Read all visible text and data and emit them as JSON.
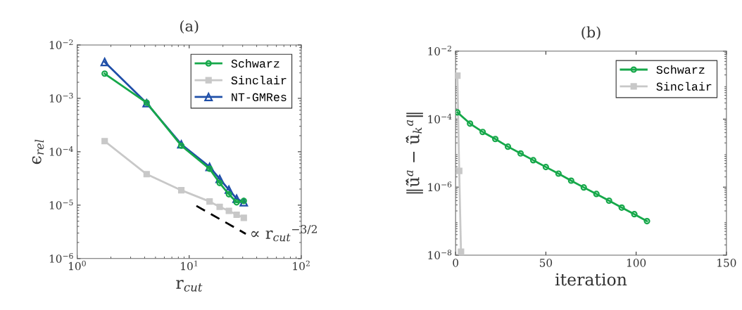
{
  "chart_data": [
    {
      "type": "line",
      "title": "(a)",
      "xlabel": "r$_{cut}$",
      "ylabel": "ϵ$_{rel}$",
      "log": "xy",
      "grid": false,
      "legend": "top right",
      "xlim": [
        1,
        100
      ],
      "ylim": [
        1e-06,
        0.01
      ],
      "xticks": [
        {
          "value": 1,
          "label": "10$^{0}$"
        },
        {
          "value": 10,
          "label": "10$^{1}$"
        },
        {
          "value": 100,
          "label": "10$^{2}$"
        }
      ],
      "yticks": [
        {
          "value": 1e-06,
          "label": "10$^{−6}$"
        },
        {
          "value": 1e-05,
          "label": "10$^{−5}$"
        },
        {
          "value": 0.0001,
          "label": "10$^{−4}$"
        },
        {
          "value": 0.001,
          "label": "10$^{−3}$"
        },
        {
          "value": 0.01,
          "label": "10$^{−2}$"
        }
      ],
      "x": [
        1.76,
        4.17,
        8.5,
        15.2,
        18.7,
        22.6,
        26.5,
        30.7
      ],
      "series": [
        {
          "name": "Schwarz",
          "color": "#16a84a",
          "marker": "circle",
          "values": [
            0.0029,
            0.00083,
            0.00013,
            4.8e-05,
            2.6e-05,
            1.6e-05,
            1.13e-05,
            1.2e-05
          ]
        },
        {
          "name": "Sinclair",
          "color": "#c8c8c8",
          "marker": "square",
          "values": [
            0.000158,
            3.8e-05,
            1.9e-05,
            1.17e-05,
            9.3e-06,
            7.8e-06,
            6.6e-06,
            5.8e-06
          ]
        },
        {
          "name": "NT-GMRes",
          "color": "#1f4fa8",
          "marker": "triangle",
          "values": [
            0.0048,
            0.00081,
            0.000138,
            5.2e-05,
            3.1e-05,
            1.95e-05,
            1.32e-05,
            1.13e-05
          ]
        },
        {
          "type": "line",
          "color": "#000000",
          "marker": "none",
          "line_style": "dashed",
          "x": [
            11.6,
            32
          ],
          "values": [
            9.7e-06,
            2.9e-06
          ]
        }
      ],
      "annotations": [
        {
          "text": "∝ r$_{cut}$$^{−3/2}$",
          "x": 32,
          "y": 2.9e-06
        }
      ]
    },
    {
      "type": "line",
      "title": "(b)",
      "xlabel": "iteration",
      "ylabel": "‖ũ̂$^{a}$ − ũ̂$_{k}$$^{a}$‖",
      "log": "y",
      "grid": false,
      "legend": "top right",
      "xlim": [
        0,
        150
      ],
      "ylim": [
        1e-08,
        0.01
      ],
      "xticks": [
        0,
        50,
        100,
        150
      ],
      "yticks": [
        {
          "value": 1e-08,
          "label": "10$^{−8}$"
        },
        {
          "value": 1e-06,
          "label": "10$^{−6}$"
        },
        {
          "value": 0.0001,
          "label": "10$^{−4}$"
        },
        {
          "value": 0.01,
          "label": "10$^{−2}$"
        }
      ],
      "series": [
        {
          "name": "Schwarz",
          "color": "#16a84a",
          "marker": "circle",
          "x": [
            1,
            8,
            15,
            22,
            29,
            36,
            43,
            50,
            57,
            64,
            71,
            78,
            85,
            92,
            99,
            106
          ],
          "values": [
            0.000158,
            7.4e-05,
            4.2e-05,
            2.6e-05,
            1.55e-05,
            9.8e-06,
            6.2e-06,
            3.9e-06,
            2.5e-06,
            1.55e-06,
            9.8e-07,
            6.3e-07,
            4e-07,
            2.5e-07,
            1.6e-07,
            1e-07
          ]
        },
        {
          "name": "Sinclair",
          "color": "#c8c8c8",
          "marker": "square",
          "x": [
            1,
            2,
            3
          ],
          "values": [
            0.0019,
            3e-06,
            1.26e-08
          ]
        }
      ]
    }
  ]
}
